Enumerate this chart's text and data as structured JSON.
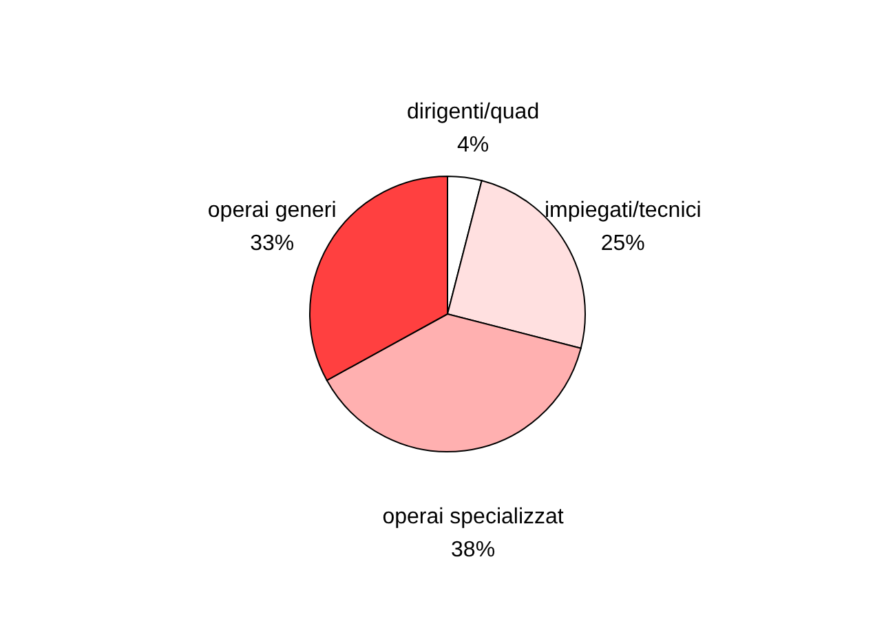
{
  "chart_data": {
    "type": "pie",
    "categories": [
      "dirigenti/quad",
      "impiegati/tecnici",
      "operai specializzat",
      "operai generi"
    ],
    "values": [
      4,
      25,
      38,
      33
    ],
    "value_labels": [
      "4%",
      "25%",
      "38%",
      "33%"
    ],
    "colors": [
      "#ffffff",
      "#ffe0e0",
      "#ffb0b0",
      "#ff4040"
    ]
  }
}
